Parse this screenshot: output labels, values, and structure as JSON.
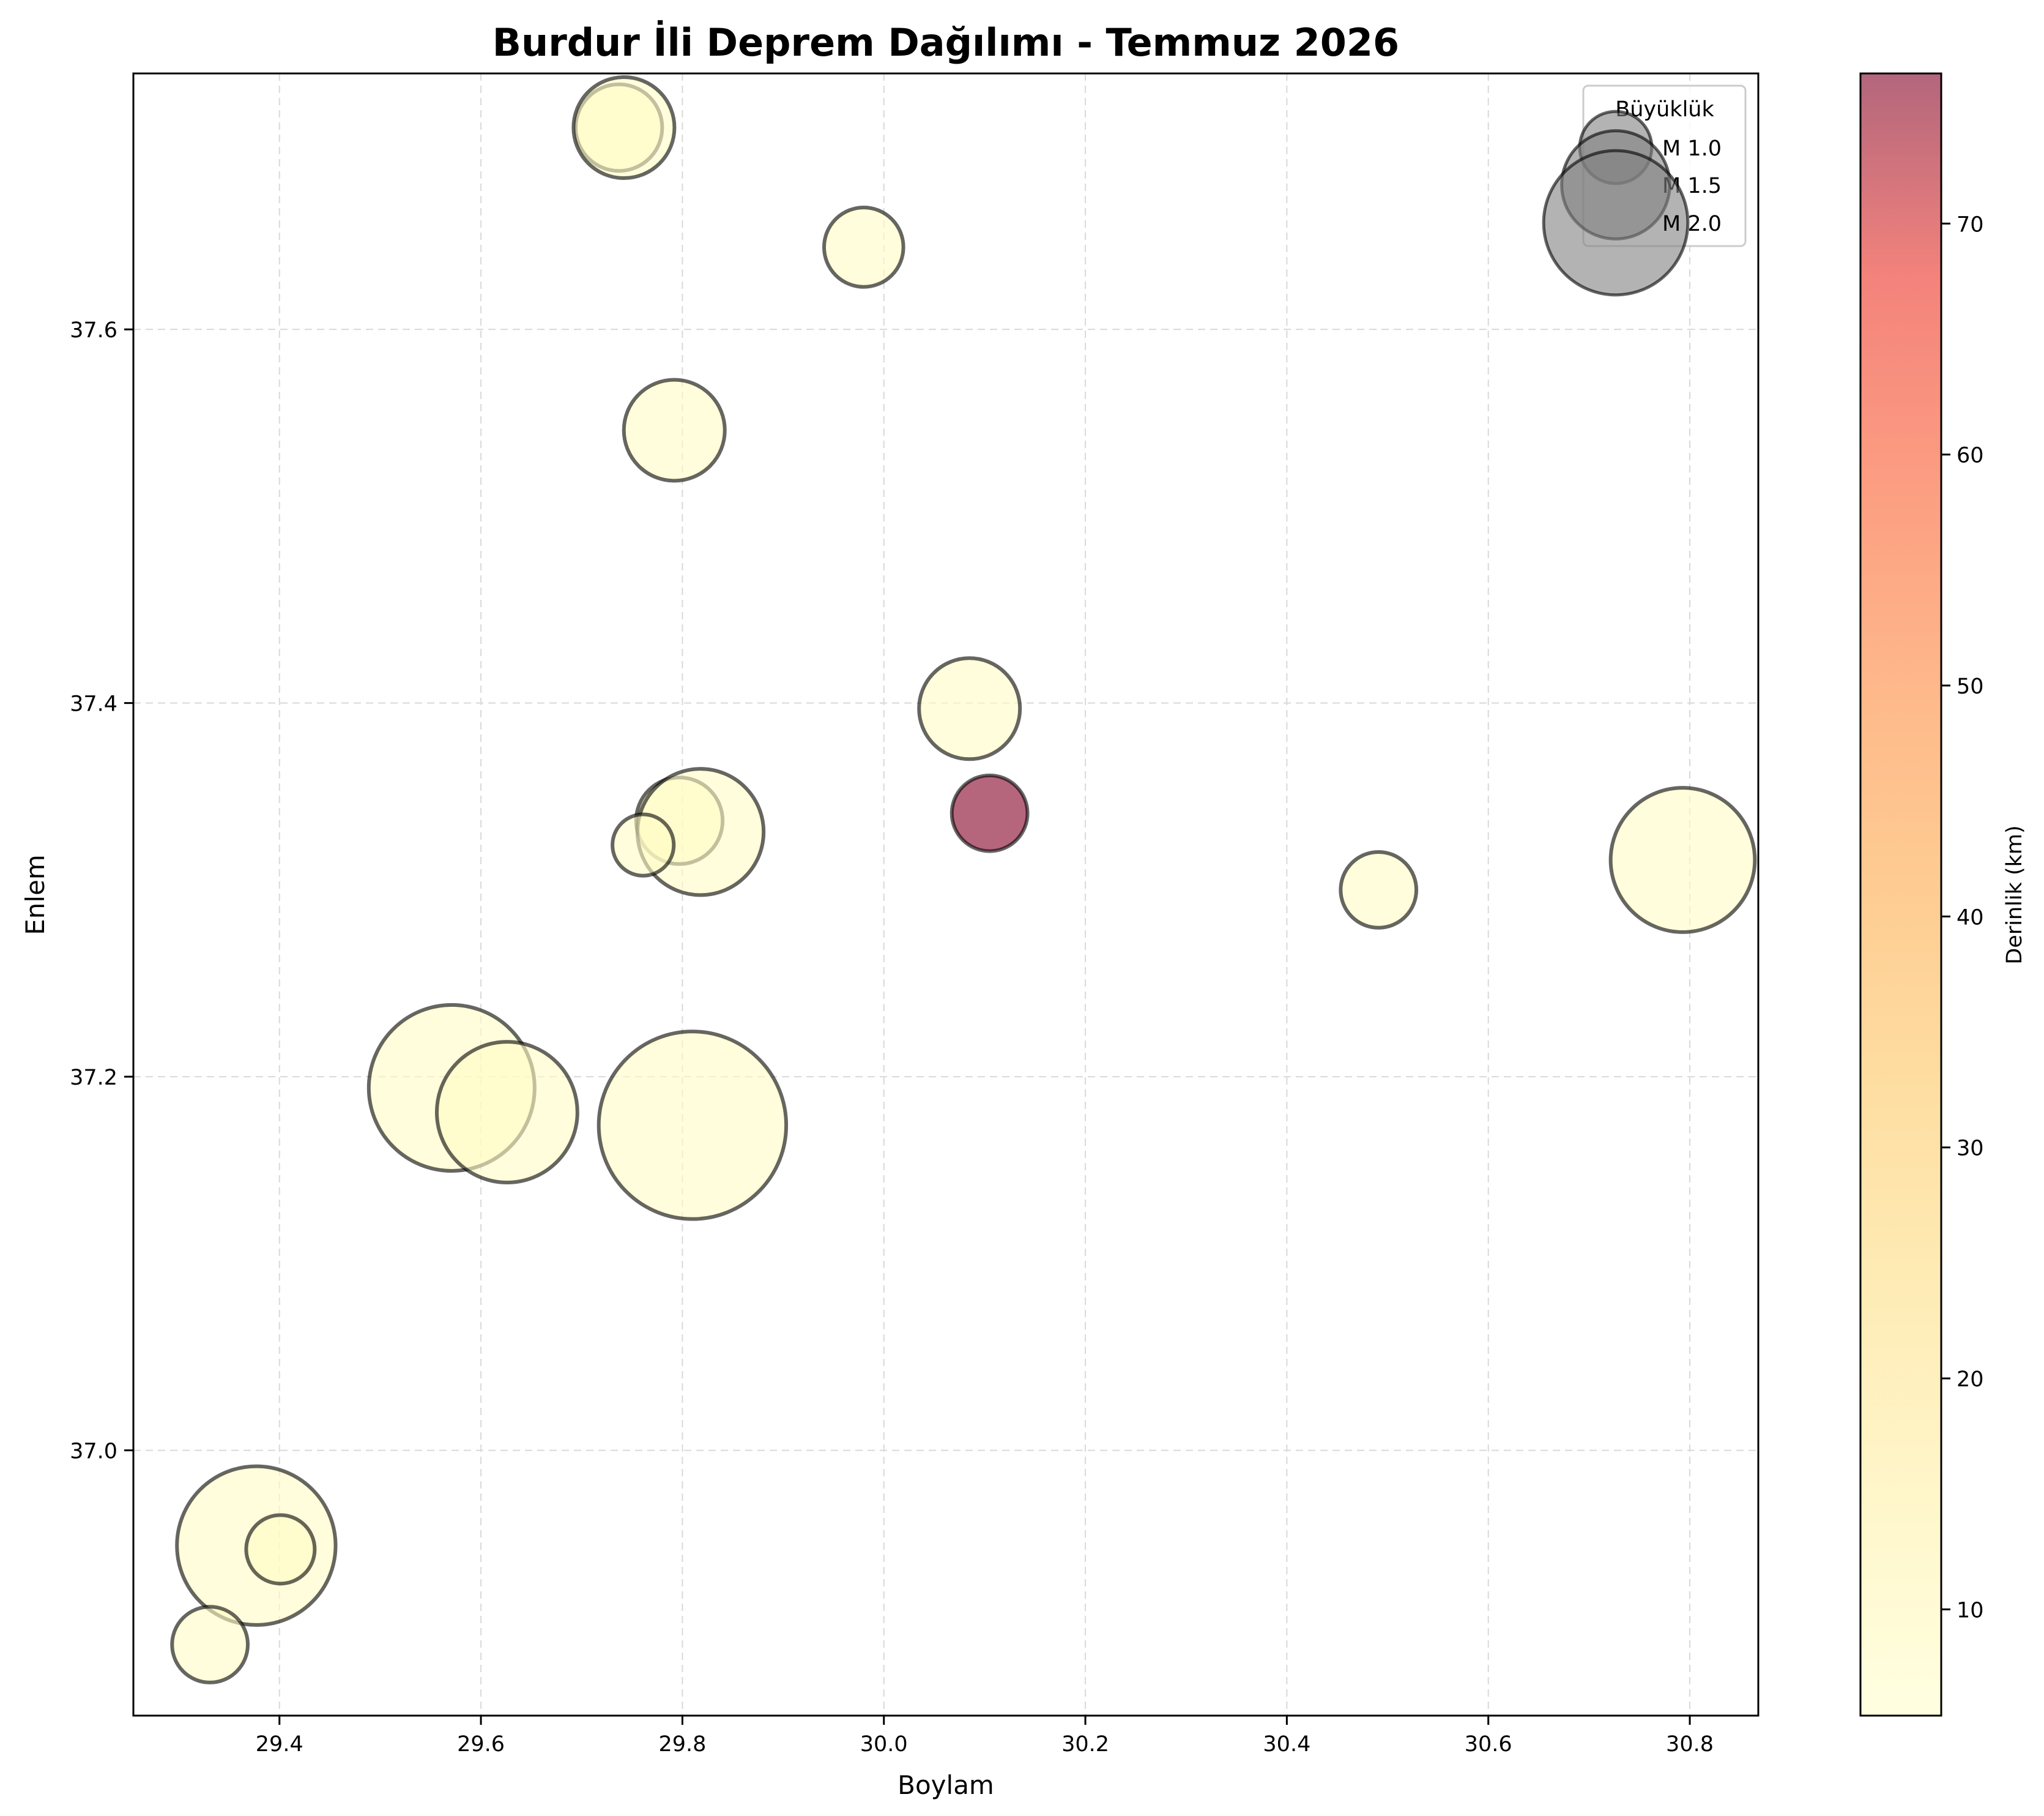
{
  "chart_data": {
    "type": "scatter",
    "title": "Burdur İli Deprem Dağılımı - Temmuz 2026",
    "xlabel": "Boylam",
    "ylabel": "Enlem",
    "xlim": [
      29.255,
      30.868
    ],
    "ylim": [
      36.858,
      37.737
    ],
    "xticks": [
      "29.4",
      "29.6",
      "29.8",
      "30.0",
      "30.2",
      "30.4",
      "30.6",
      "30.8"
    ],
    "yticks": [
      "37.0",
      "37.2",
      "37.4",
      "37.6"
    ],
    "grid": true,
    "legend": {
      "title": "Büyüklük",
      "placement": "top-right",
      "entries": [
        {
          "label": "M 1.0",
          "magnitude": 1.0
        },
        {
          "label": "M 1.5",
          "magnitude": 1.5
        },
        {
          "label": "M 2.0",
          "magnitude": 2.0
        }
      ]
    },
    "colorbar": {
      "label": "Derinlik (km)",
      "range": [
        5.4,
        76.5
      ],
      "ticks": [
        "10",
        "20",
        "30",
        "40",
        "50",
        "60",
        "70"
      ],
      "colormap": "YlOrRd",
      "alpha": 0.6
    },
    "points": [
      {
        "lon": 29.737,
        "lat": 37.708,
        "mag": 1.2,
        "depth": 7
      },
      {
        "lon": 29.742,
        "lat": 37.708,
        "mag": 1.4,
        "depth": 7
      },
      {
        "lon": 29.98,
        "lat": 37.644,
        "mag": 1.1,
        "depth": 7
      },
      {
        "lon": 29.792,
        "lat": 37.546,
        "mag": 1.4,
        "depth": 7
      },
      {
        "lon": 30.085,
        "lat": 37.397,
        "mag": 1.4,
        "depth": 7
      },
      {
        "lon": 29.797,
        "lat": 37.337,
        "mag": 1.2,
        "depth": 7
      },
      {
        "lon": 29.818,
        "lat": 37.331,
        "mag": 1.75,
        "depth": 7
      },
      {
        "lon": 29.761,
        "lat": 37.324,
        "mag": 0.85,
        "depth": 7
      },
      {
        "lon": 30.105,
        "lat": 37.341,
        "mag": 1.05,
        "depth": 76
      },
      {
        "lon": 30.491,
        "lat": 37.3,
        "mag": 1.05,
        "depth": 7
      },
      {
        "lon": 30.793,
        "lat": 37.316,
        "mag": 2.0,
        "depth": 7
      },
      {
        "lon": 29.571,
        "lat": 37.194,
        "mag": 2.3,
        "depth": 7
      },
      {
        "lon": 29.626,
        "lat": 37.181,
        "mag": 1.95,
        "depth": 7
      },
      {
        "lon": 29.81,
        "lat": 37.174,
        "mag": 2.6,
        "depth": 7
      },
      {
        "lon": 29.377,
        "lat": 36.949,
        "mag": 2.2,
        "depth": 7
      },
      {
        "lon": 29.401,
        "lat": 36.947,
        "mag": 0.95,
        "depth": 7
      },
      {
        "lon": 29.331,
        "lat": 36.896,
        "mag": 1.05,
        "depth": 7
      }
    ]
  }
}
